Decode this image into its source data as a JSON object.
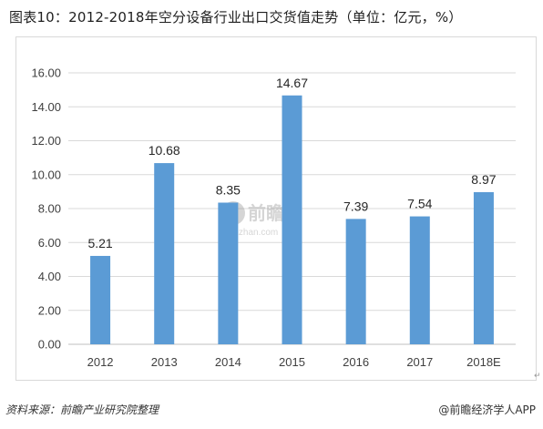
{
  "title": "图表10：2012-2018年空分设备行业出口交货值走势（单位：亿元，%）",
  "footer": {
    "source": "资料来源：前瞻产业研究院整理",
    "brand": "@前瞻经济学人APP"
  },
  "watermark": {
    "text": "前瞻网",
    "subtext": "qianzhan.com"
  },
  "chart_data": {
    "type": "bar",
    "categories": [
      "2012",
      "2013",
      "2014",
      "2015",
      "2016",
      "2017",
      "2018E"
    ],
    "values": [
      5.21,
      10.68,
      8.35,
      14.67,
      7.39,
      7.54,
      8.97
    ],
    "value_labels": [
      "5.21",
      "10.68",
      "8.35",
      "14.67",
      "7.39",
      "7.54",
      "8.97"
    ],
    "yticks": [
      "0.00",
      "2.00",
      "4.00",
      "6.00",
      "8.00",
      "10.00",
      "12.00",
      "14.00",
      "16.00"
    ],
    "ylim": [
      0,
      16
    ],
    "grid": true,
    "bar_color": "#5b9bd5"
  }
}
